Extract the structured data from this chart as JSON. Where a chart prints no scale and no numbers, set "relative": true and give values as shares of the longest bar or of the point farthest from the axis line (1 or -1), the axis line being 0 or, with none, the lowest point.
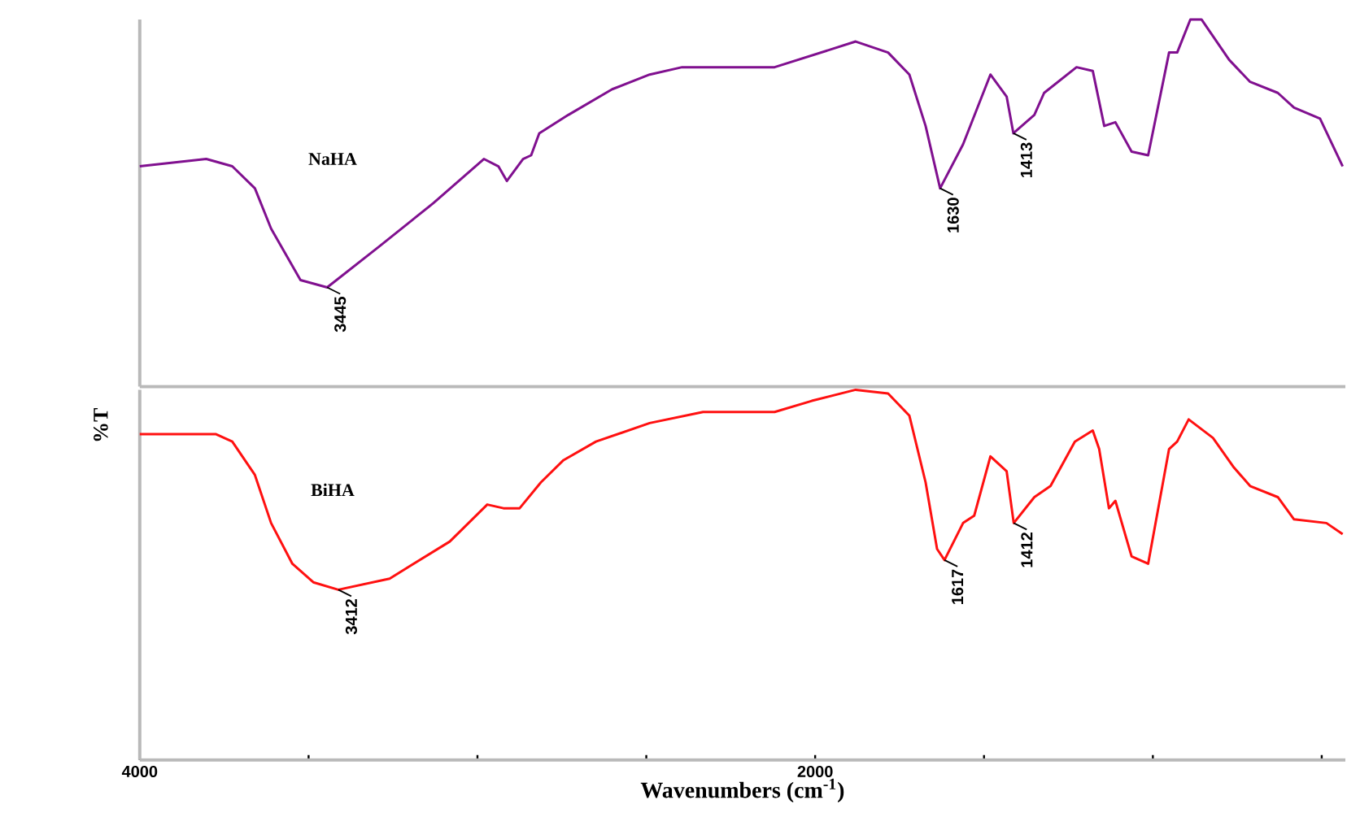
{
  "chart_data": [
    {
      "type": "line",
      "relative": true,
      "xlim": [
        4000,
        430
      ],
      "tick_labels": false,
      "series": [
        {
          "name": "NaHA",
          "color": "#80108f",
          "x": [
            4000,
            3803,
            3726,
            3659,
            3611,
            3524,
            3445,
            3293,
            3130,
            2981,
            2938,
            2913,
            2865,
            2841,
            2817,
            2731,
            2601,
            2490,
            2394,
            2298,
            2120,
            1880,
            1784,
            1721,
            1673,
            1630,
            1562,
            1481,
            1433,
            1413,
            1351,
            1322,
            1226,
            1178,
            1144,
            1111,
            1063,
            1014,
            952,
            928,
            889,
            856,
            774,
            712,
            630,
            582,
            505,
            438
          ],
          "values": [
            0.6,
            0.62,
            0.6,
            0.54,
            0.43,
            0.29,
            0.27,
            0.38,
            0.5,
            0.62,
            0.6,
            0.56,
            0.62,
            0.63,
            0.69,
            0.74,
            0.81,
            0.85,
            0.87,
            0.87,
            0.87,
            0.94,
            0.91,
            0.85,
            0.71,
            0.54,
            0.66,
            0.85,
            0.79,
            0.69,
            0.74,
            0.8,
            0.87,
            0.86,
            0.71,
            0.72,
            0.64,
            0.63,
            0.91,
            0.91,
            1.0,
            1.0,
            0.89,
            0.83,
            0.8,
            0.76,
            0.73,
            0.6
          ]
        }
      ],
      "annotations": [
        {
          "text": "3445",
          "x": 3445,
          "y": 0.27
        },
        {
          "text": "1630",
          "x": 1630,
          "y": 0.54
        },
        {
          "text": "1413",
          "x": 1413,
          "y": 0.69
        }
      ]
    },
    {
      "type": "line",
      "relative": true,
      "ylabel": "%T",
      "xlabel": "Wavenumbers (cm$^{-1}$)",
      "xlim": [
        4000,
        430
      ],
      "tick_labels": "x",
      "xticks": [
        4000,
        {
          "value": 3500,
          "label": null
        },
        {
          "value": 3000,
          "label": null
        },
        {
          "value": 2500,
          "label": null
        },
        2000,
        {
          "value": 1500,
          "label": null
        },
        {
          "value": 1000,
          "label": null
        },
        {
          "value": 500,
          "label": null
        }
      ],
      "series": [
        {
          "name": "BiHA",
          "color": "#ff1010",
          "x": [
            4000,
            3774,
            3726,
            3659,
            3611,
            3548,
            3486,
            3412,
            3260,
            3082,
            2971,
            2923,
            2875,
            2812,
            2745,
            2649,
            2490,
            2332,
            2120,
            2010,
            1880,
            1784,
            1721,
            1673,
            1639,
            1617,
            1562,
            1529,
            1481,
            1433,
            1412,
            1351,
            1303,
            1231,
            1178,
            1159,
            1130,
            1111,
            1063,
            1014,
            952,
            928,
            894,
            822,
            760,
            712,
            630,
            582,
            486,
            438
          ],
          "values": [
            0.88,
            0.88,
            0.86,
            0.77,
            0.64,
            0.53,
            0.48,
            0.46,
            0.49,
            0.59,
            0.69,
            0.68,
            0.68,
            0.75,
            0.81,
            0.86,
            0.91,
            0.94,
            0.94,
            0.97,
            1.0,
            0.99,
            0.93,
            0.75,
            0.57,
            0.54,
            0.64,
            0.66,
            0.82,
            0.78,
            0.64,
            0.71,
            0.74,
            0.86,
            0.89,
            0.84,
            0.68,
            0.7,
            0.55,
            0.53,
            0.84,
            0.86,
            0.92,
            0.87,
            0.79,
            0.74,
            0.71,
            0.65,
            0.64,
            0.61
          ]
        }
      ],
      "annotations": [
        {
          "text": "3412",
          "x": 3412,
          "y": 0.46
        },
        {
          "text": "1617",
          "x": 1617,
          "y": 0.54
        },
        {
          "text": "1412",
          "x": 1412,
          "y": 0.64
        }
      ]
    }
  ]
}
